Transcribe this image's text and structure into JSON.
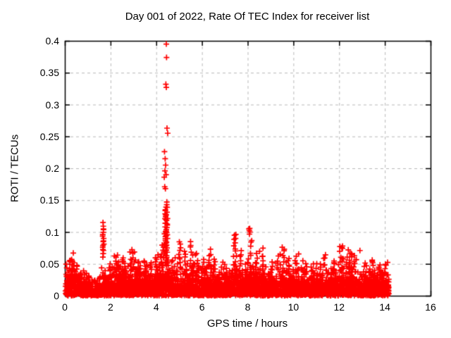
{
  "window": {
    "background": "#ffffff"
  },
  "chart_data": {
    "type": "scatter",
    "title": "Day 001 of 2022, Rate Of TEC Index for receiver list",
    "xlabel": "GPS time / hours",
    "ylabel": "ROTI / TECUs",
    "xlim": [
      0,
      16
    ],
    "ylim": [
      0,
      0.4
    ],
    "x_ticks": [
      0,
      2,
      4,
      6,
      8,
      10,
      12,
      14,
      16
    ],
    "x_tick_labels": [
      "0",
      "2",
      "4",
      "6",
      "8",
      "10",
      "12",
      "14",
      "16"
    ],
    "y_ticks": [
      0,
      0.05,
      0.1,
      0.15,
      0.2,
      0.25,
      0.3,
      0.35,
      0.4
    ],
    "y_tick_labels": [
      "0",
      "0.05",
      "0.1",
      "0.15",
      "0.2",
      "0.25",
      "0.3",
      "0.35",
      "0.4"
    ],
    "grid": true,
    "legend": false,
    "marker": "plus",
    "marker_color": "#ff0000",
    "grid_color": "#b9b9b9",
    "axis_color": "#000000",
    "data_extent": {
      "t_start": 0.03,
      "t_end": 14.18
    },
    "noise_band": {
      "count": 4000,
      "seed": 20220101,
      "sigma_envelope": [
        [
          0.0,
          0.017
        ],
        [
          0.3,
          0.021
        ],
        [
          0.6,
          0.016
        ],
        [
          0.9,
          0.012
        ],
        [
          1.3,
          0.012
        ],
        [
          1.6,
          0.014
        ],
        [
          1.9,
          0.015
        ],
        [
          2.2,
          0.019
        ],
        [
          2.6,
          0.02
        ],
        [
          3.0,
          0.021
        ],
        [
          3.4,
          0.017
        ],
        [
          3.8,
          0.018
        ],
        [
          4.1,
          0.021
        ],
        [
          4.5,
          0.024
        ],
        [
          4.8,
          0.017
        ],
        [
          5.1,
          0.02
        ],
        [
          5.5,
          0.022
        ],
        [
          5.9,
          0.018
        ],
        [
          6.2,
          0.019
        ],
        [
          6.6,
          0.017
        ],
        [
          7.0,
          0.015
        ],
        [
          7.4,
          0.021
        ],
        [
          7.8,
          0.018
        ],
        [
          8.1,
          0.022
        ],
        [
          8.5,
          0.019
        ],
        [
          9.0,
          0.016
        ],
        [
          9.4,
          0.018
        ],
        [
          9.8,
          0.016
        ],
        [
          10.2,
          0.017
        ],
        [
          10.6,
          0.015
        ],
        [
          11.0,
          0.015
        ],
        [
          11.4,
          0.017
        ],
        [
          11.8,
          0.017
        ],
        [
          12.2,
          0.019
        ],
        [
          12.6,
          0.019
        ],
        [
          13.0,
          0.015
        ],
        [
          13.4,
          0.016
        ],
        [
          13.8,
          0.017
        ],
        [
          14.18,
          0.015
        ]
      ]
    },
    "spike_clusters": [
      [
        0.25,
        0.04,
        0.057,
        4,
        0.08
      ],
      [
        0.5,
        0.035,
        0.05,
        4,
        0.1
      ],
      [
        1.68,
        0.06,
        0.112,
        9,
        0.035
      ],
      [
        2.0,
        0.035,
        0.05,
        5,
        0.08
      ],
      [
        2.25,
        0.04,
        0.066,
        9,
        0.09
      ],
      [
        2.55,
        0.038,
        0.06,
        7,
        0.08
      ],
      [
        2.95,
        0.042,
        0.075,
        10,
        0.1
      ],
      [
        3.15,
        0.038,
        0.058,
        6,
        0.08
      ],
      [
        3.55,
        0.038,
        0.055,
        6,
        0.1
      ],
      [
        3.8,
        0.035,
        0.05,
        5,
        0.08
      ],
      [
        4.05,
        0.04,
        0.062,
        7,
        0.09
      ],
      [
        4.25,
        0.045,
        0.08,
        10,
        0.07
      ],
      [
        4.44,
        0.05,
        0.145,
        26,
        0.055
      ],
      [
        4.75,
        0.038,
        0.06,
        6,
        0.08
      ],
      [
        5.0,
        0.045,
        0.085,
        9,
        0.07
      ],
      [
        5.3,
        0.04,
        0.072,
        6,
        0.07
      ],
      [
        5.55,
        0.042,
        0.08,
        8,
        0.09
      ],
      [
        5.78,
        0.038,
        0.068,
        6,
        0.07
      ],
      [
        6.1,
        0.038,
        0.055,
        5,
        0.08
      ],
      [
        6.35,
        0.04,
        0.07,
        8,
        0.09
      ],
      [
        6.55,
        0.038,
        0.06,
        5,
        0.07
      ],
      [
        7.0,
        0.035,
        0.05,
        5,
        0.09
      ],
      [
        7.45,
        0.045,
        0.096,
        11,
        0.08
      ],
      [
        7.65,
        0.04,
        0.072,
        6,
        0.07
      ],
      [
        8.1,
        0.045,
        0.106,
        11,
        0.08
      ],
      [
        8.35,
        0.038,
        0.065,
        6,
        0.08
      ],
      [
        8.6,
        0.04,
        0.075,
        8,
        0.08
      ],
      [
        9.0,
        0.035,
        0.052,
        5,
        0.09
      ],
      [
        9.35,
        0.038,
        0.065,
        6,
        0.08
      ],
      [
        9.55,
        0.04,
        0.075,
        7,
        0.07
      ],
      [
        9.75,
        0.038,
        0.058,
        5,
        0.07
      ],
      [
        10.15,
        0.04,
        0.065,
        7,
        0.09
      ],
      [
        10.5,
        0.035,
        0.055,
        5,
        0.09
      ],
      [
        10.8,
        0.034,
        0.05,
        4,
        0.08
      ],
      [
        11.1,
        0.035,
        0.052,
        5,
        0.09
      ],
      [
        11.4,
        0.038,
        0.065,
        7,
        0.08
      ],
      [
        11.75,
        0.035,
        0.055,
        5,
        0.08
      ],
      [
        12.1,
        0.042,
        0.08,
        10,
        0.08
      ],
      [
        12.45,
        0.038,
        0.068,
        14,
        0.12
      ],
      [
        12.7,
        0.04,
        0.06,
        6,
        0.07
      ],
      [
        13.1,
        0.035,
        0.05,
        4,
        0.08
      ],
      [
        13.5,
        0.038,
        0.058,
        6,
        0.09
      ],
      [
        13.8,
        0.035,
        0.05,
        4,
        0.07
      ],
      [
        14.05,
        0.038,
        0.055,
        5,
        0.08
      ]
    ],
    "outlier_points": [
      [
        4.44,
        0.395
      ],
      [
        4.45,
        0.374
      ],
      [
        4.42,
        0.332
      ],
      [
        4.44,
        0.327
      ],
      [
        4.47,
        0.263
      ],
      [
        4.5,
        0.255
      ],
      [
        4.36,
        0.226
      ],
      [
        4.39,
        0.215
      ],
      [
        4.41,
        0.205
      ],
      [
        4.38,
        0.196
      ],
      [
        4.43,
        0.19
      ],
      [
        4.35,
        0.186
      ],
      [
        4.37,
        0.171
      ],
      [
        4.4,
        0.168
      ],
      [
        4.46,
        0.143
      ],
      [
        4.43,
        0.139
      ],
      [
        4.4,
        0.135
      ],
      [
        4.47,
        0.131
      ],
      [
        4.44,
        0.127
      ],
      [
        4.41,
        0.124
      ],
      [
        4.38,
        0.121
      ],
      [
        4.45,
        0.118
      ],
      [
        4.42,
        0.114
      ],
      [
        4.48,
        0.111
      ],
      [
        4.39,
        0.108
      ],
      [
        4.44,
        0.104
      ],
      [
        4.41,
        0.101
      ],
      [
        4.46,
        0.099
      ],
      [
        4.36,
        0.097
      ],
      [
        4.43,
        0.094
      ],
      [
        4.49,
        0.09
      ],
      [
        4.4,
        0.087
      ],
      [
        4.45,
        0.084
      ],
      [
        4.37,
        0.081
      ],
      [
        4.42,
        0.078
      ],
      [
        4.47,
        0.075
      ],
      [
        4.44,
        0.072
      ],
      [
        4.39,
        0.069
      ],
      [
        4.35,
        0.066
      ],
      [
        4.41,
        0.063
      ],
      [
        4.46,
        0.06
      ],
      [
        1.67,
        0.115
      ],
      [
        1.69,
        0.105
      ],
      [
        1.66,
        0.096
      ],
      [
        1.7,
        0.09
      ],
      [
        1.68,
        0.085
      ],
      [
        1.71,
        0.081
      ],
      [
        1.66,
        0.076
      ],
      [
        1.69,
        0.071
      ],
      [
        1.67,
        0.066
      ],
      [
        0.37,
        0.067
      ],
      [
        0.3,
        0.057
      ],
      [
        5.5,
        0.085
      ],
      [
        7.42,
        0.095
      ],
      [
        7.47,
        0.09
      ],
      [
        8.05,
        0.105
      ],
      [
        8.1,
        0.1
      ],
      [
        9.6,
        0.073
      ],
      [
        12.15,
        0.078
      ],
      [
        12.4,
        0.072
      ],
      [
        12.91,
        0.071
      ],
      [
        13.2,
        0.047
      ]
    ]
  }
}
